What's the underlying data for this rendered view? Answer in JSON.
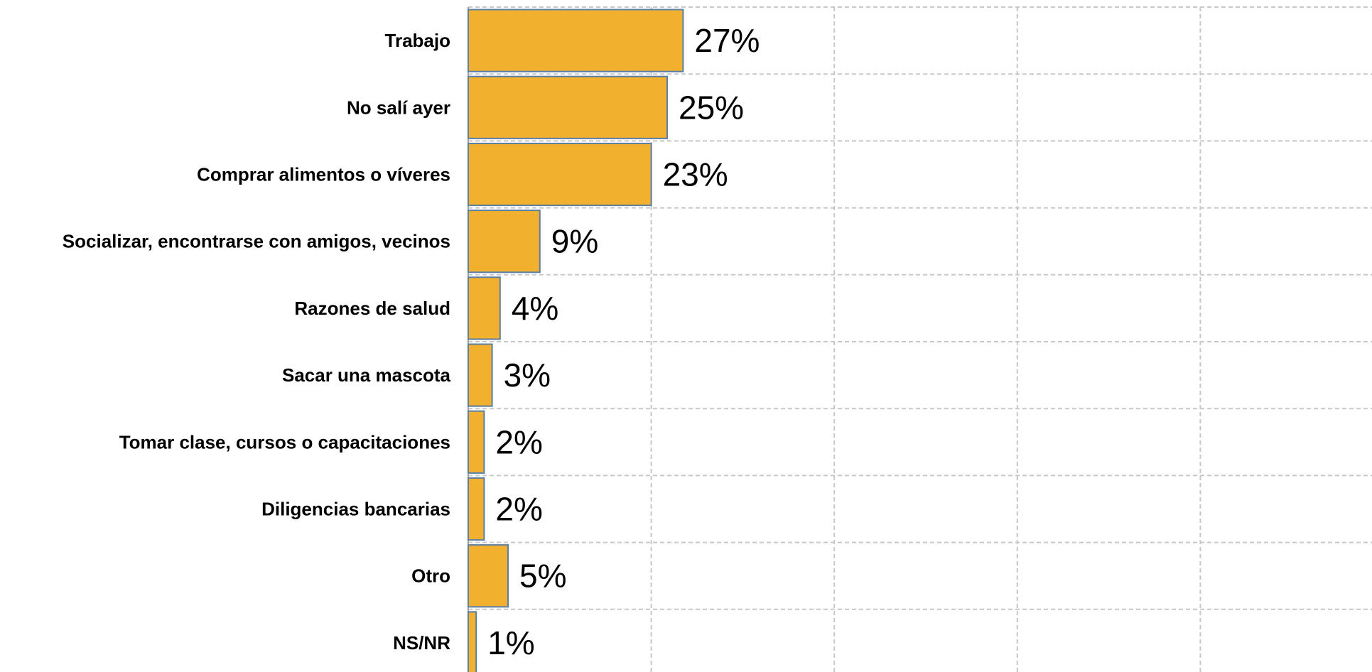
{
  "chart_data": {
    "type": "bar",
    "orientation": "horizontal",
    "categories": [
      "Trabajo",
      "No salí ayer",
      "Comprar alimentos o víveres",
      "Socializar, encontrarse con amigos, vecinos",
      "Razones de salud",
      "Sacar una mascota",
      "Tomar clase, cursos o capacitaciones",
      "Diligencias bancarias",
      "Otro",
      "NS/NR"
    ],
    "values": [
      27,
      25,
      23,
      9,
      4,
      3,
      2,
      2,
      5,
      1
    ],
    "value_labels": [
      "27%",
      "25%",
      "23%",
      "9%",
      "4%",
      "3%",
      "2%",
      "2%",
      "5%",
      "1%"
    ],
    "xlim": [
      0,
      100
    ],
    "grid": true,
    "legend": "none",
    "colors": {
      "bar_fill": "#F2B02F",
      "bar_stroke": "#5B7FA3",
      "grid": "#C8C8C8",
      "axis": "#A0A0A0"
    }
  }
}
